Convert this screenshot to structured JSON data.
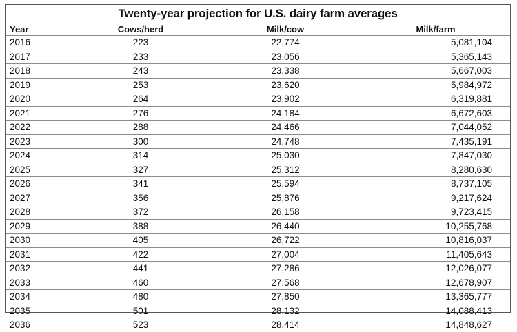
{
  "chart_data": {
    "type": "table",
    "title": "Twenty-year projection for U.S. dairy farm averages",
    "columns": [
      "Year",
      "Cows/herd",
      "Milk/cow",
      "Milk/farm"
    ],
    "rows": [
      [
        "2016",
        "223",
        "22,774",
        "5,081,104"
      ],
      [
        "2017",
        "233",
        "23,056",
        "5,365,143"
      ],
      [
        "2018",
        "243",
        "23,338",
        "5,667,003"
      ],
      [
        "2019",
        "253",
        "23,620",
        "5,984,972"
      ],
      [
        "2020",
        "264",
        "23,902",
        "6,319,881"
      ],
      [
        "2021",
        "276",
        "24,184",
        "6,672,603"
      ],
      [
        "2022",
        "288",
        "24,466",
        "7,044,052"
      ],
      [
        "2023",
        "300",
        "24,748",
        "7,435,191"
      ],
      [
        "2024",
        "314",
        "25,030",
        "7,847,030"
      ],
      [
        "2025",
        "327",
        "25,312",
        "8,280,630"
      ],
      [
        "2026",
        "341",
        "25,594",
        "8,737,105"
      ],
      [
        "2027",
        "356",
        "25,876",
        "9,217,624"
      ],
      [
        "2028",
        "372",
        "26,158",
        "9,723,415"
      ],
      [
        "2029",
        "388",
        "26,440",
        "10,255,768"
      ],
      [
        "2030",
        "405",
        "26,722",
        "10,816,037"
      ],
      [
        "2031",
        "422",
        "27,004",
        "11,405,643"
      ],
      [
        "2032",
        "441",
        "27,286",
        "12,026,077"
      ],
      [
        "2033",
        "460",
        "27,568",
        "12,678,907"
      ],
      [
        "2034",
        "480",
        "27,850",
        "13,365,777"
      ],
      [
        "2035",
        "501",
        "28,132",
        "14,088,413"
      ],
      [
        "2036",
        "523",
        "28,414",
        "14,848,627"
      ]
    ]
  },
  "colors": {
    "text": "#111111",
    "rule": "#8c8c8c",
    "border": "#555555",
    "background": "#ffffff"
  }
}
